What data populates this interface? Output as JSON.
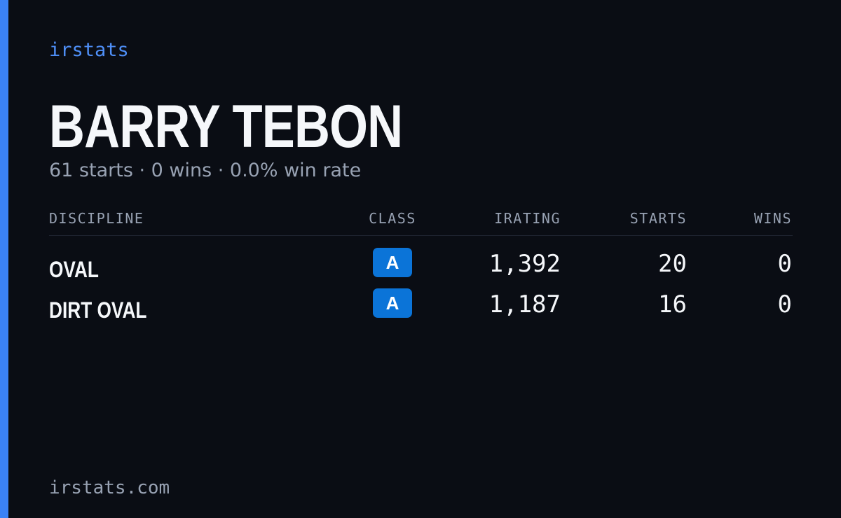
{
  "header": {
    "brand": "irstats",
    "name": "BARRY TEBON",
    "summary": "61 starts · 0 wins · 0.0% win rate"
  },
  "table": {
    "headers": [
      "DISCIPLINE",
      "CLASS",
      "IRATING",
      "STARTS",
      "WINS"
    ],
    "rows": [
      [
        "OVAL",
        "A",
        "1,392",
        "20",
        "0"
      ],
      [
        "DIRT OVAL",
        "A",
        "1,187",
        "16",
        "0"
      ]
    ]
  },
  "footer": {
    "site": "irstats.com"
  }
}
